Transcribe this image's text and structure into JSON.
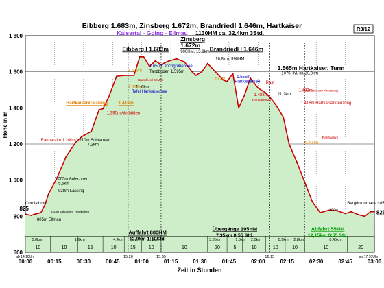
{
  "header": {
    "title": "Eibberg 1.683m, Zinsberg 1.672m, Brandriedl 1.646m, Hartkaiser",
    "subtitle_route": "Kaisertal - Going - Ellmau",
    "subtitle_stats": "1130HM    ca. 32,4km   3Std.",
    "route_id": "R3/12"
  },
  "chart_data": {
    "type": "area",
    "title": "Eibberg 1.683m, Zinsberg 1.672m, Brandriedl 1.646m, Hartkaiser",
    "xlabel": "Zeit in Stunden",
    "ylabel": "Höhe in m",
    "ylim": [
      600,
      1800
    ],
    "xlim_minutes": [
      0,
      180
    ],
    "x_ticks": [
      "00:00",
      "00:15",
      "00:30",
      "00:45",
      "01:00",
      "01:15",
      "01:30",
      "01:45",
      "02:00",
      "02:15",
      "02:30",
      "02:45",
      "03:00"
    ],
    "y_ticks": [
      "600",
      "800",
      "1 000",
      "1 200",
      "1 400",
      "1 600",
      "1 800"
    ],
    "grid": true,
    "fill_color": "#cdeec8",
    "line_color": "#cc0000",
    "profile_minutes": [
      0,
      3,
      5,
      8,
      10,
      12,
      16,
      21,
      26,
      29,
      34,
      38,
      40,
      43,
      47,
      51,
      56,
      59,
      61,
      64,
      67,
      70,
      74,
      78,
      82,
      86,
      88,
      91,
      94,
      98,
      102,
      104,
      107,
      110,
      113,
      116,
      120,
      124,
      126,
      129,
      133,
      136,
      140,
      144,
      148,
      152,
      157,
      161,
      165,
      168,
      172,
      175,
      178,
      180
    ],
    "profile_elev": [
      812,
      805,
      812,
      820,
      860,
      925,
      1005,
      1130,
      1210,
      1240,
      1270,
      1390,
      1395,
      1460,
      1575,
      1580,
      1580,
      1683,
      1683,
      1630,
      1660,
      1640,
      1660,
      1672,
      1655,
      1600,
      1580,
      1600,
      1646,
      1600,
      1555,
      1546,
      1590,
      1400,
      1470,
      1565,
      1510,
      1483,
      1460,
      1420,
      1350,
      1200,
      1100,
      990,
      880,
      820,
      835,
      830,
      815,
      825,
      808,
      800,
      825,
      825
    ],
    "section_markers_minutes": [
      53,
      70,
      126,
      144
    ],
    "section_times": [
      "15:20",
      "15:55",
      "16:15"
    ],
    "bottom_segments": {
      "minutes": [
        0,
        13,
        27,
        40,
        51,
        60,
        70,
        94,
        104,
        112,
        124,
        134,
        144,
        166,
        180
      ],
      "values": [
        "10",
        "10",
        "15",
        "10",
        "15",
        "10",
        "10",
        "20",
        "5",
        "10",
        "10",
        "10",
        "10",
        "20",
        "10"
      ]
    },
    "distance_labels": [
      {
        "label": "5,0km",
        "minute": 6
      },
      {
        "label": "1,6km",
        "minute": 28
      },
      {
        "label": "4,4km",
        "minute": 48
      },
      {
        "label": "1,3km",
        "minute": 66
      },
      {
        "label": "3,85km",
        "minute": 98
      },
      {
        "label": "1,5km",
        "minute": 111
      },
      {
        "label": "2,0km",
        "minute": 119
      },
      {
        "label": "0,9km",
        "minute": 133
      },
      {
        "label": "2,8km",
        "minute": 141
      },
      {
        "label": "8,45km",
        "minute": 160
      }
    ],
    "time_marker_labels": [
      {
        "label": "ab 14:10Uhr",
        "minute": 0
      },
      {
        "label": "an 17:10Uhr",
        "minute": 177
      }
    ],
    "section_labels": [
      {
        "title": "Auffahrt 880HM",
        "sub": "12,9km  1:10Std.",
        "minute": 63,
        "elev": 700
      },
      {
        "title": "Übergänge 195HM",
        "sub": "7,35km   0:55 Std.",
        "minute": 108,
        "elev": 720
      },
      {
        "title": "Abfahrt 55HM",
        "sub": "12,15km  0:55 Std.",
        "minute": 156,
        "elev": 720
      }
    ],
    "annotations": [
      {
        "text": "Eibberg I 1.683m",
        "minute": 50,
        "elev": 1715,
        "color": "#000000",
        "style": "peak"
      },
      {
        "text": "Zinsberg",
        "minute": 80,
        "elev": 1770,
        "color": "#000000",
        "style": "peak"
      },
      {
        "text": "1.672m",
        "minute": 80,
        "elev": 1735,
        "color": "#000000",
        "style": "peak"
      },
      {
        "text": "900HM, 13,9km",
        "minute": 80,
        "elev": 1705,
        "color": "#000000",
        "style": "small"
      },
      {
        "text": "Brandriedl I 1.646m",
        "minute": 95,
        "elev": 1715,
        "color": "#000000",
        "style": "peak"
      },
      {
        "text": "16,8km, 990HM",
        "minute": 98,
        "elev": 1665,
        "color": "#000000",
        "style": "small"
      },
      {
        "text": "1.565m Hartkaiser, Turm",
        "minute": 130,
        "elev": 1610,
        "color": "#000000",
        "style": "peak"
      },
      {
        "text": "1075HM, ca 20,3km",
        "minute": 132,
        "elev": 1585,
        "color": "#000000",
        "style": "small"
      },
      {
        "text": "1.650m Jochgrubensee",
        "minute": 64,
        "elev": 1625,
        "color": "#0000cc",
        "style": "small"
      },
      {
        "text": "Tanzboden 1.595m",
        "minute": 64,
        "elev": 1595,
        "color": "#000000",
        "style": "small"
      },
      {
        "text": "1.575m",
        "minute": 53,
        "elev": 1600,
        "color": "#e08000",
        "style": "small"
      },
      {
        "text": "Brandriedl 60Min",
        "minute": 58,
        "elev": 1550,
        "color": "#cc0000",
        "style": "tiny"
      },
      {
        "text": "1.555m",
        "minute": 53,
        "elev": 1510,
        "color": "#e08000",
        "style": "small"
      },
      {
        "text": "11,6km",
        "minute": 57,
        "elev": 1510,
        "color": "#000000",
        "style": "small"
      },
      {
        "text": "Tafel Hartkaisersee",
        "minute": 55,
        "elev": 1485,
        "color": "#0000cc",
        "style": "small"
      },
      {
        "text": "1.571m",
        "minute": 96,
        "elev": 1555,
        "color": "#e08000",
        "style": "small"
      },
      {
        "text": "1.555m",
        "minute": 109,
        "elev": 1565,
        "color": "#0000cc",
        "style": "small"
      },
      {
        "text": "Hartkaisersee",
        "minute": 108,
        "elev": 1540,
        "color": "#0000cc",
        "style": "small"
      },
      {
        "text": "1.483m",
        "minute": 118,
        "elev": 1465,
        "color": "#cc0000",
        "style": "small"
      },
      {
        "text": "Hartkaiser20'",
        "minute": 117,
        "elev": 1440,
        "color": "#cc0000",
        "style": "tiny"
      },
      {
        "text": "Rast",
        "minute": 124,
        "elev": 1535,
        "color": "#cc0000",
        "style": "small"
      },
      {
        "text": "21,2km",
        "minute": 130,
        "elev": 1470,
        "color": "#000000",
        "style": "small"
      },
      {
        "text": "1.483m",
        "minute": 141,
        "elev": 1490,
        "color": "#cc0000",
        "style": "small"
      },
      {
        "text": "Hartkaiseralm Kreuzung",
        "minute": 143,
        "elev": 1490,
        "color": "#cc0000",
        "style": "tiny"
      },
      {
        "text": "1.416m Hartkaiserkreuzung",
        "minute": 142,
        "elev": 1420,
        "color": "#cc0000",
        "style": "small"
      },
      {
        "text": "Hartkaiserkreuzung",
        "minute": 21,
        "elev": 1420,
        "color": "#e08000",
        "style": "underline"
      },
      {
        "text": "1.416m",
        "minute": 48,
        "elev": 1420,
        "color": "#e08000",
        "style": "underline"
      },
      {
        "text": "1.390m Almhütten",
        "minute": 42,
        "elev": 1365,
        "color": "#cc0000",
        "style": "small"
      },
      {
        "text": "1.210m Schranken",
        "minute": 26,
        "elev": 1215,
        "color": "#000000",
        "style": "small"
      },
      {
        "text": "7,2km",
        "minute": 32,
        "elev": 1190,
        "color": "#000000",
        "style": "small"
      },
      {
        "text": "Ranharalm 1.200m",
        "minute": 8,
        "elev": 1215,
        "color": "#cc0000",
        "style": "small"
      },
      {
        "text": "1.005m Aulechner",
        "minute": 15,
        "elev": 1000,
        "color": "#000000",
        "style": "small"
      },
      {
        "text": "5,6km",
        "minute": 17,
        "elev": 975,
        "color": "#000000",
        "style": "small"
      },
      {
        "text": "928m Lassing",
        "minute": 17,
        "elev": 935,
        "color": "#000000",
        "style": "small"
      },
      {
        "text": "820m Talstation Hartkaiser",
        "minute": 13,
        "elev": 820,
        "color": "#000000",
        "style": "tiny"
      },
      {
        "text": "Cordialhotel",
        "minute": 0,
        "elev": 865,
        "color": "#000000",
        "style": "small"
      },
      {
        "text": "825",
        "minute": -3,
        "elev": 832,
        "color": "#000000",
        "style": "bold"
      },
      {
        "text": "805m Ellmau",
        "minute": 6,
        "elev": 775,
        "color": "#000000",
        "style": "small"
      },
      {
        "text": "1.200m",
        "minute": 144,
        "elev": 1200,
        "color": "#e08000",
        "style": "small"
      },
      {
        "text": "Ranharalm",
        "minute": 153,
        "elev": 1230,
        "color": "#cc0000",
        "style": "tiny"
      },
      {
        "text": "820m",
        "minute": 157,
        "elev": 830,
        "color": "#000000",
        "style": "tiny"
      },
      {
        "text": "Bergdoktorhaus ~850m",
        "minute": 166,
        "elev": 865,
        "color": "#000000",
        "style": "small"
      },
      {
        "text": "825",
        "minute": 181,
        "elev": 810,
        "color": "#000000",
        "style": "bold"
      }
    ]
  }
}
